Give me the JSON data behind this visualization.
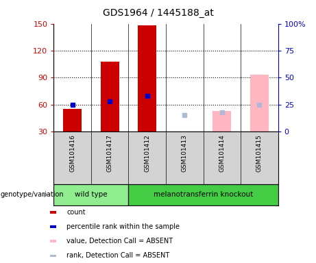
{
  "title": "GDS1964 / 1445188_at",
  "samples": [
    "GSM101416",
    "GSM101417",
    "GSM101412",
    "GSM101413",
    "GSM101414",
    "GSM101415"
  ],
  "red_bar_values": [
    55,
    108,
    148,
    null,
    null,
    null
  ],
  "blue_marker_pct": [
    25,
    28,
    33,
    null,
    null,
    null
  ],
  "pink_bar_values": [
    null,
    null,
    null,
    28,
    53,
    93
  ],
  "lightblue_marker_pct": [
    null,
    null,
    null,
    15,
    18,
    25
  ],
  "ylim_left": [
    30,
    150
  ],
  "ylim_right": [
    0,
    100
  ],
  "yticks_left": [
    30,
    60,
    90,
    120,
    150
  ],
  "yticks_right": [
    0,
    25,
    50,
    75,
    100
  ],
  "ytick_labels_left": [
    "30",
    "60",
    "90",
    "120",
    "150"
  ],
  "ytick_labels_right": [
    "0",
    "25",
    "50",
    "75",
    "100%"
  ],
  "left_color": "#cc0000",
  "right_color": "#0000cc",
  "bar_width": 0.5,
  "wild_type_label": "wild type",
  "knockout_label": "melanotransferrin knockout",
  "group_label": "genotype/variation",
  "legend_entries": [
    {
      "label": "count",
      "color": "#cc0000"
    },
    {
      "label": "percentile rank within the sample",
      "color": "#0000cc"
    },
    {
      "label": "value, Detection Call = ABSENT",
      "color": "#ffb6c1"
    },
    {
      "label": "rank, Detection Call = ABSENT",
      "color": "#b0b8d8"
    }
  ],
  "bg_color": "#ffffff",
  "sample_bg_color": "#d3d3d3",
  "wild_type_bg": "#90EE90",
  "knockout_bg": "#44cc44"
}
